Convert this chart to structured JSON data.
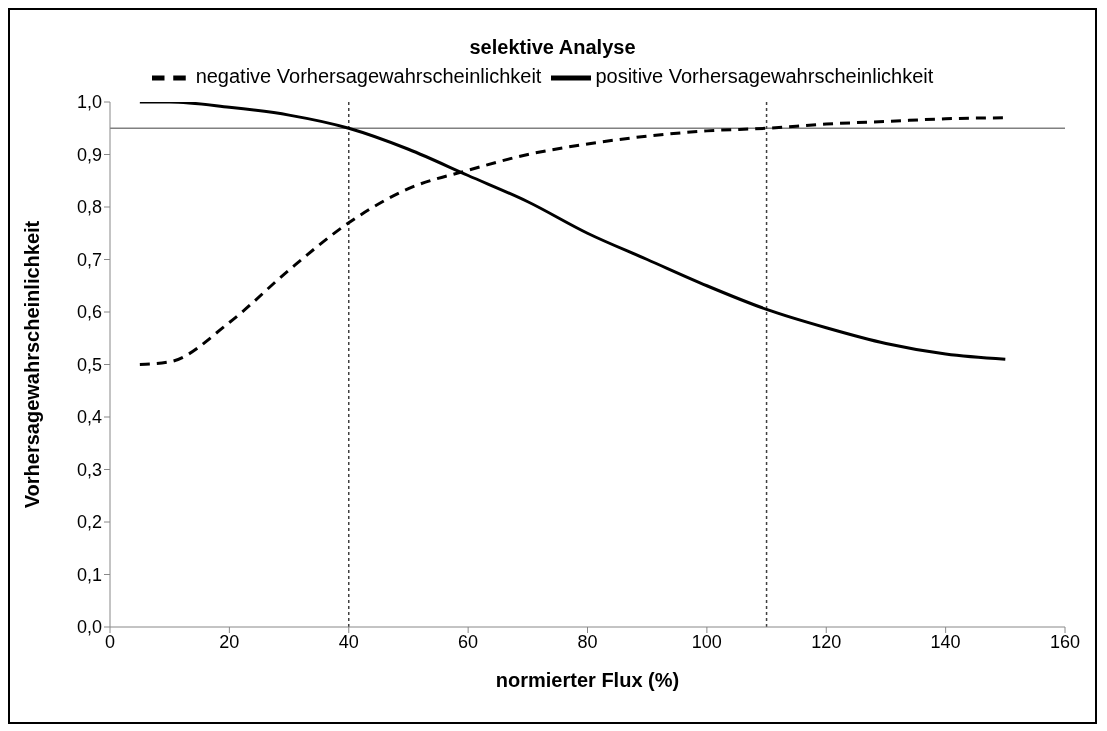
{
  "chart_data": {
    "type": "line",
    "title": "selektive Analyse",
    "xlabel": "normierter Flux (%)",
    "ylabel": "Vorhersagewahrscheinlichkeit",
    "x": [
      5,
      10,
      20,
      30,
      40,
      50,
      60,
      70,
      80,
      90,
      100,
      110,
      120,
      130,
      140,
      150
    ],
    "series": [
      {
        "name": "positive Vorhersagewahrscheinlichkeit",
        "color": "#000000",
        "line_style": "solid",
        "values": [
          1.0,
          1.0,
          0.99,
          0.975,
          0.95,
          0.91,
          0.86,
          0.81,
          0.75,
          0.7,
          0.65,
          0.605,
          0.57,
          0.54,
          0.52,
          0.51
        ]
      },
      {
        "name": "negative Vorhersagewahrscheinlichkeit",
        "color": "#000000",
        "line_style": "dashed",
        "values": [
          0.5,
          0.505,
          0.58,
          0.68,
          0.77,
          0.835,
          0.87,
          0.9,
          0.92,
          0.935,
          0.945,
          0.95,
          0.958,
          0.963,
          0.968,
          0.97
        ]
      }
    ],
    "xlim": [
      0,
      160
    ],
    "xticks": [
      0,
      20,
      40,
      60,
      80,
      100,
      120,
      140,
      160
    ],
    "ylim": [
      0,
      1
    ],
    "yticks": [
      {
        "value": 0,
        "label": "0,0"
      },
      {
        "value": 0.1,
        "label": "0,1"
      },
      {
        "value": 0.2,
        "label": "0,2"
      },
      {
        "value": 0.3,
        "label": "0,3"
      },
      {
        "value": 0.4,
        "label": "0,4"
      },
      {
        "value": 0.5,
        "label": "0,5"
      },
      {
        "value": 0.6,
        "label": "0,6"
      },
      {
        "value": 0.7,
        "label": "0,7"
      },
      {
        "value": 0.8,
        "label": "0,8"
      },
      {
        "value": 0.9,
        "label": "0,9"
      },
      {
        "value": 1,
        "label": "1,0"
      }
    ],
    "ref_lines": [
      {
        "axis": "y",
        "value": 0.95,
        "color": "#808080",
        "line_style": "solid"
      },
      {
        "axis": "x",
        "value": 40,
        "color": "#404040",
        "line_style": "dotted"
      },
      {
        "axis": "x",
        "value": 110,
        "color": "#404040",
        "line_style": "dotted"
      }
    ],
    "grid": false,
    "legend": "top",
    "marker": "none"
  }
}
